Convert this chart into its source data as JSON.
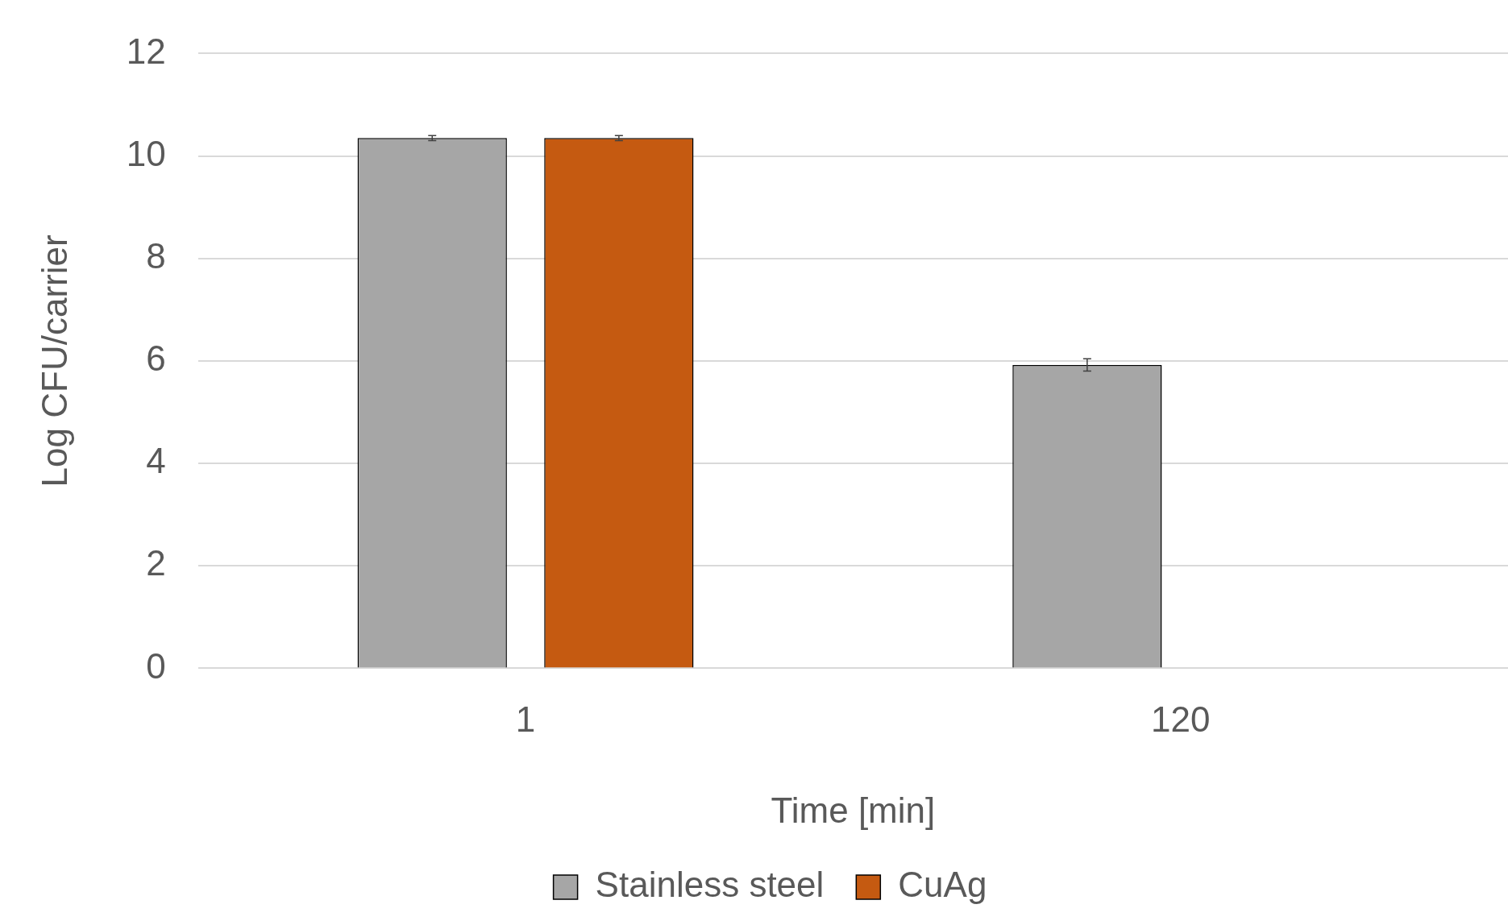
{
  "chart_data": {
    "type": "bar",
    "xlabel": "Time [min]",
    "ylabel": "Log CFU/carrier",
    "categories": [
      "1",
      "120"
    ],
    "series": [
      {
        "name": "Stainless steel",
        "color": "#a6a6a6",
        "values": [
          10.35,
          5.92
        ],
        "errors": [
          0.05,
          0.12
        ]
      },
      {
        "name": "CuAg",
        "color": "#c55a11",
        "values": [
          10.35,
          0
        ],
        "errors": [
          0.05,
          null
        ]
      }
    ],
    "ylim": [
      0,
      12
    ],
    "yticks": [
      0,
      2,
      4,
      6,
      8,
      10,
      12
    ],
    "grid": "y",
    "legend": "bottom"
  }
}
